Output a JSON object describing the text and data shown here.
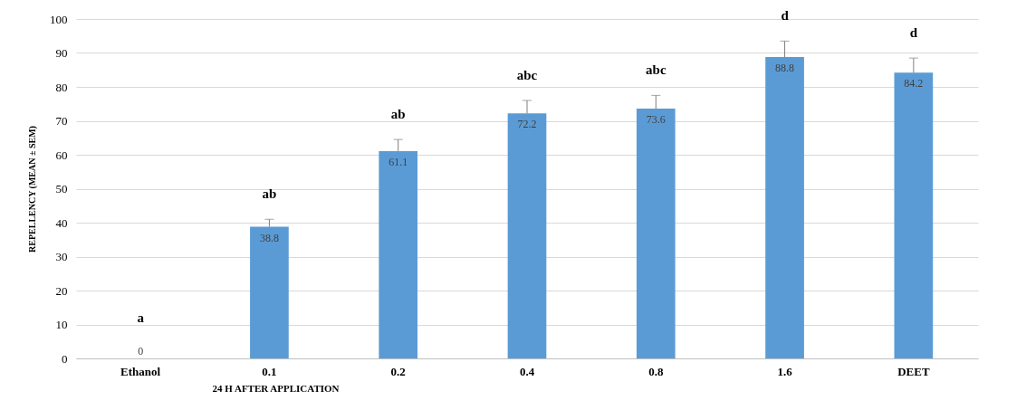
{
  "chart_data": {
    "type": "bar",
    "categories": [
      "Ethanol",
      "0.1",
      "0.2",
      "0.4",
      "0.8",
      "1.6",
      "DEET"
    ],
    "values": [
      0,
      38.8,
      61.1,
      72.2,
      73.6,
      88.8,
      84.2
    ],
    "errors": [
      null,
      2.2,
      3.4,
      3.8,
      3.9,
      4.7,
      4.3
    ],
    "color": "#5b9bd5",
    "data_labels": true,
    "xlabel": "24 H AFTER APPLICATION",
    "ylabel": "REPELLENCY (MEAN ± SEM)",
    "ylim": [
      0,
      100
    ],
    "yticks": [
      0,
      10,
      20,
      30,
      40,
      50,
      60,
      70,
      80,
      90,
      100
    ],
    "grid": "y",
    "annotations": [
      "a",
      "ab",
      "ab",
      "abc",
      "abc",
      "d",
      "d"
    ]
  }
}
